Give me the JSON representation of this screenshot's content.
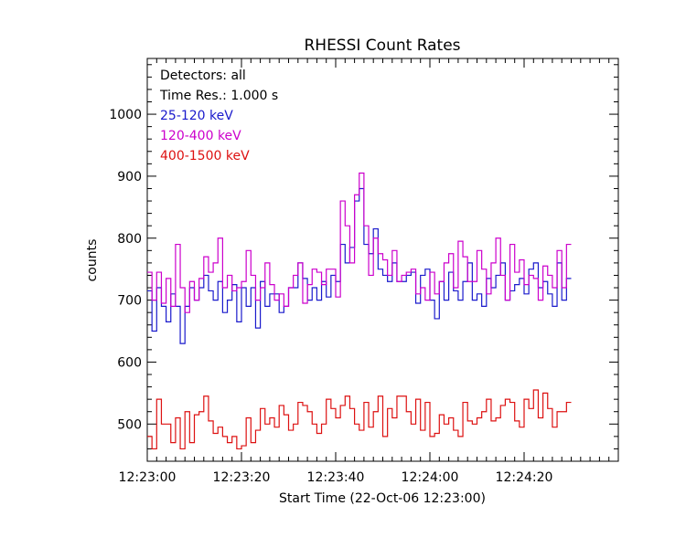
{
  "chart_data": {
    "type": "line",
    "step": true,
    "title": "RHESSI Count Rates",
    "xlabel": "Start Time (22-Oct-06 12:23:00)",
    "ylabel": "counts",
    "x_unit_seconds_from": "12:23:00",
    "xlim": [
      0,
      100
    ],
    "ylim": [
      440,
      1090
    ],
    "x_ticks": [
      {
        "value": 0,
        "label": "12:23:00"
      },
      {
        "value": 20,
        "label": "12:23:20"
      },
      {
        "value": 40,
        "label": "12:23:40"
      },
      {
        "value": 60,
        "label": "12:24:00"
      },
      {
        "value": 80,
        "label": "12:24:20"
      }
    ],
    "y_ticks": [
      500,
      600,
      700,
      800,
      900,
      1000
    ],
    "grid": false,
    "legend": {
      "placement": "top-left",
      "header": [
        "Detectors: all",
        "Time Res.: 1.000 s"
      ]
    },
    "time_resolution_s": 1,
    "series": [
      {
        "name": "25-120 keV",
        "color": "#1a1acc",
        "values": [
          715,
          650,
          720,
          690,
          665,
          710,
          690,
          630,
          690,
          720,
          700,
          720,
          740,
          715,
          700,
          730,
          680,
          700,
          725,
          665,
          720,
          690,
          720,
          655,
          730,
          690,
          710,
          710,
          680,
          690,
          720,
          720,
          760,
          735,
          700,
          720,
          700,
          730,
          705,
          740,
          730,
          790,
          760,
          785,
          860,
          880,
          790,
          775,
          815,
          750,
          740,
          730,
          760,
          730,
          730,
          740,
          745,
          695,
          740,
          750,
          700,
          670,
          730,
          700,
          745,
          715,
          700,
          730,
          760,
          700,
          710,
          690,
          735,
          720,
          740,
          760,
          700,
          715,
          725,
          735,
          710,
          750,
          760,
          720,
          730,
          710,
          690,
          760,
          700,
          735
        ]
      },
      {
        "name": "120-400 keV",
        "color": "#cc00cc",
        "values": [
          745,
          700,
          745,
          695,
          735,
          690,
          790,
          720,
          680,
          730,
          700,
          735,
          770,
          745,
          760,
          800,
          720,
          740,
          715,
          720,
          730,
          780,
          740,
          700,
          720,
          760,
          725,
          700,
          710,
          690,
          720,
          740,
          760,
          695,
          725,
          750,
          745,
          725,
          750,
          750,
          705,
          860,
          820,
          760,
          870,
          905,
          820,
          740,
          800,
          775,
          765,
          740,
          780,
          730,
          740,
          745,
          750,
          710,
          720,
          700,
          745,
          710,
          730,
          760,
          775,
          720,
          795,
          770,
          730,
          730,
          780,
          750,
          710,
          760,
          800,
          740,
          700,
          790,
          745,
          765,
          725,
          740,
          735,
          700,
          755,
          740,
          720,
          780,
          720,
          790
        ]
      },
      {
        "name": "400-1500 keV",
        "color": "#dd1111",
        "values": [
          480,
          460,
          540,
          500,
          500,
          470,
          510,
          460,
          520,
          470,
          515,
          520,
          545,
          505,
          485,
          495,
          480,
          470,
          480,
          460,
          465,
          510,
          470,
          490,
          525,
          500,
          510,
          495,
          530,
          515,
          490,
          500,
          535,
          530,
          520,
          500,
          485,
          500,
          540,
          525,
          510,
          530,
          545,
          525,
          500,
          490,
          535,
          495,
          520,
          545,
          480,
          525,
          510,
          545,
          545,
          520,
          500,
          540,
          490,
          535,
          480,
          485,
          515,
          500,
          510,
          490,
          480,
          535,
          505,
          500,
          510,
          520,
          540,
          505,
          510,
          530,
          540,
          535,
          505,
          495,
          540,
          525,
          555,
          510,
          550,
          525,
          495,
          520,
          520,
          535
        ]
      }
    ]
  }
}
